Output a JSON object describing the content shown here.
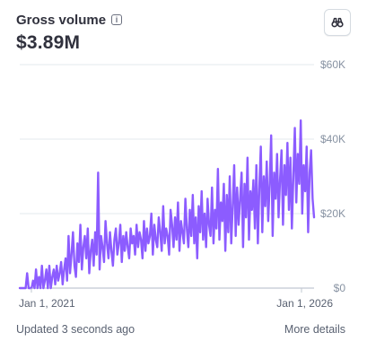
{
  "header": {
    "title": "Gross volume",
    "amount": "$3.89M",
    "info_icon": "info-icon",
    "explore_icon": "binoculars-icon"
  },
  "footer": {
    "updated": "Updated 3 seconds ago",
    "more_details": "More details"
  },
  "colors": {
    "series": "#8c5cff",
    "grid": "#e3e8ee",
    "baseline": "#c0c8d2",
    "tick": "#8792a2"
  },
  "chart_data": {
    "type": "line",
    "title": "",
    "xlabel": "",
    "ylabel": "",
    "x_ticks": [
      "Jan 1, 2021",
      "Jan 1, 2026"
    ],
    "y_ticks": [
      "$0",
      "$20K",
      "$40K",
      "$60K"
    ],
    "y_tick_values": [
      0,
      20000,
      40000,
      60000
    ],
    "ylim": [
      0,
      60000
    ],
    "x_range": [
      "2020-10",
      "2026-03"
    ],
    "grid": true,
    "series": [
      {
        "values": [
          0,
          0,
          0,
          0,
          0,
          4000,
          0,
          0,
          0,
          2000,
          0,
          5000,
          0,
          3000,
          0,
          6000,
          0,
          2000,
          5000,
          0,
          6000,
          0,
          3000,
          5000,
          1000,
          6000,
          2000,
          4000,
          7000,
          1000,
          5000,
          8000,
          2000,
          14000,
          4000,
          9000,
          15000,
          6000,
          3000,
          12000,
          7000,
          17000,
          5000,
          11000,
          14000,
          8000,
          16000,
          4000,
          10000,
          13000,
          6000,
          15000,
          9000,
          31000,
          5000,
          14000,
          11000,
          7000,
          18000,
          12000,
          8000,
          15000,
          10000,
          6000,
          13000,
          16000,
          9000,
          12000,
          17000,
          7000,
          14000,
          10000,
          15000,
          11000,
          8000,
          16000,
          12000,
          14000,
          9000,
          17000,
          11000,
          15000,
          13000,
          8000,
          18000,
          10000,
          16000,
          12000,
          14000,
          20000,
          9000,
          17000,
          13000,
          11000,
          19000,
          15000,
          10000,
          22000,
          12000,
          16000,
          14000,
          9000,
          21000,
          17000,
          11000,
          19000,
          13000,
          23000,
          10000,
          18000,
          15000,
          12000,
          24000,
          16000,
          11000,
          21000,
          14000,
          25000,
          12000,
          19000,
          8000,
          22000,
          15000,
          26000,
          13000,
          20000,
          11000,
          24000,
          17000,
          14000,
          27000,
          12000,
          21000,
          16000,
          32000,
          13000,
          23000,
          18000,
          28000,
          10000,
          25000,
          15000,
          30000,
          12000,
          22000,
          33000,
          14000,
          27000,
          17000,
          24000,
          31000,
          11000,
          28000,
          19000,
          35000,
          13000,
          26000,
          21000,
          29000,
          16000,
          33000,
          12000,
          27000,
          38000,
          15000,
          30000,
          22000,
          34000,
          18000,
          28000,
          41000,
          14000,
          31000,
          24000,
          36000,
          19000,
          29000,
          37000,
          17000,
          33000,
          25000,
          39000,
          21000,
          35000,
          16000,
          30000,
          43000,
          23000,
          36000,
          28000,
          45000,
          20000,
          33000,
          26000,
          38000,
          15000,
          31000,
          37000,
          24000,
          19000
        ]
      }
    ]
  }
}
